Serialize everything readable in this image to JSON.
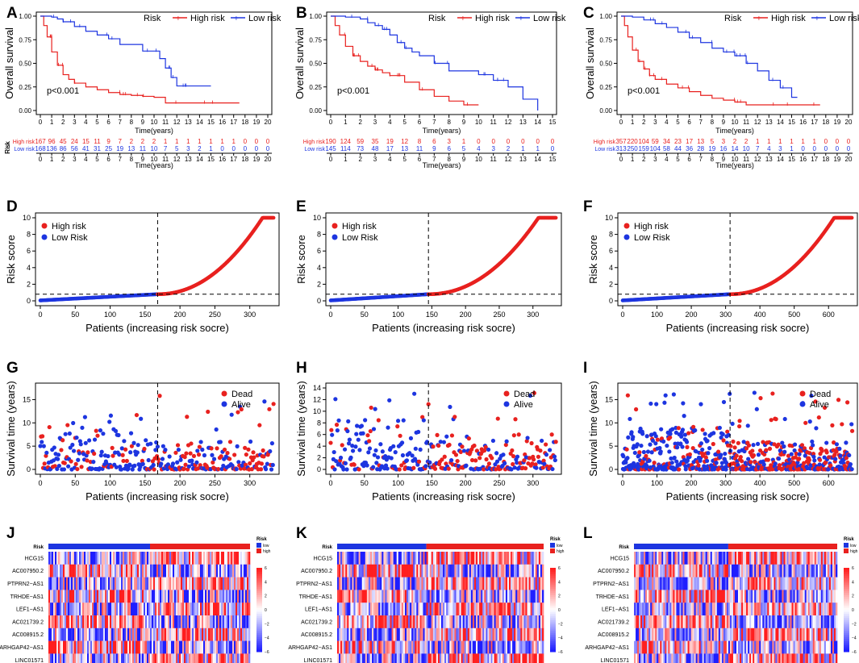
{
  "colors": {
    "high": "#e8211f",
    "low": "#1d35e0",
    "dead": "#e8211f",
    "alive": "#1d35e0",
    "axis": "#000000"
  },
  "panel_labels": [
    "A",
    "B",
    "C",
    "D",
    "E",
    "F",
    "G",
    "H",
    "I",
    "J",
    "K",
    "L"
  ],
  "km": {
    "ylabel": "Overall survival",
    "xlabel": "Time(years)",
    "legend_title": "Risk",
    "legend_high": "High risk",
    "legend_low": "Low risk",
    "y_ticks": [
      "0.00",
      "0.25",
      "0.50",
      "0.75",
      "1.00"
    ]
  },
  "risk_table": {
    "side_label": "Risk",
    "row_high": "High risk",
    "row_low": "Low risk",
    "xlabel": "Time(years)"
  },
  "score": {
    "ylabel": "Risk score",
    "xlabel": "Patients (increasing risk socre)",
    "legend_high": "High risk",
    "legend_low": "Low Risk"
  },
  "status": {
    "ylabel": "Survival time (years)",
    "xlabel": "Patients (increasing risk socre)",
    "legend_dead": "Dead",
    "legend_alive": "Alive"
  },
  "heatmap": {
    "genes": [
      "HCG15",
      "AC007950.2",
      "PTPRN2−AS1",
      "TRHDE−AS1",
      "LEF1−AS1",
      "AC021739.2",
      "AC008915.2",
      "ARHGAP42−AS1",
      "LINC01571"
    ],
    "risk_row": "Risk",
    "legend_title": "Risk",
    "legend_low": "low",
    "legend_high": "high",
    "scale_ticks": [
      "6",
      "4",
      "2",
      "0",
      "−2",
      "−4",
      "−6"
    ]
  },
  "chart_data": [
    {
      "panel": "A",
      "type": "line",
      "title": "",
      "xlabel": "Time(years)",
      "ylabel": "Overall survival",
      "xlim": [
        0,
        20
      ],
      "ylim": [
        0,
        1
      ],
      "p_value": "p<0.001",
      "x_ticks": [
        "0",
        "1",
        "2",
        "3",
        "4",
        "5",
        "6",
        "7",
        "8",
        "9",
        "10",
        "11",
        "12",
        "13",
        "14",
        "15",
        "16",
        "17",
        "18",
        "19",
        "20"
      ],
      "series": [
        {
          "name": "High risk",
          "x": [
            0,
            0.3,
            0.6,
            1,
            1.5,
            2,
            2.5,
            3,
            4,
            5,
            6,
            7,
            8,
            9,
            10,
            11,
            12,
            15,
            17.5
          ],
          "values": [
            1,
            0.9,
            0.78,
            0.62,
            0.48,
            0.38,
            0.33,
            0.29,
            0.25,
            0.22,
            0.19,
            0.17,
            0.16,
            0.15,
            0.14,
            0.08,
            0.08,
            0.08,
            0.08
          ]
        },
        {
          "name": "Low risk",
          "x": [
            0,
            1,
            1.5,
            2,
            3,
            4,
            5,
            6,
            7,
            8,
            9,
            10,
            10.5,
            11,
            11.5,
            12,
            13,
            14,
            15
          ],
          "values": [
            1,
            0.99,
            0.97,
            0.94,
            0.89,
            0.84,
            0.8,
            0.76,
            0.7,
            0.7,
            0.63,
            0.63,
            0.55,
            0.45,
            0.35,
            0.26,
            0.26,
            0.26,
            0.26
          ]
        }
      ]
    },
    {
      "panel": "B",
      "type": "line",
      "title": "",
      "xlabel": "Time(years)",
      "ylabel": "Overall survival",
      "xlim": [
        0,
        15
      ],
      "ylim": [
        0,
        1
      ],
      "p_value": "p<0.001",
      "x_ticks": [
        "0",
        "1",
        "2",
        "3",
        "4",
        "5",
        "6",
        "7",
        "8",
        "9",
        "10",
        "11",
        "12",
        "13",
        "14",
        "15"
      ],
      "series": [
        {
          "name": "High risk",
          "x": [
            0,
            0.3,
            0.6,
            1,
            1.5,
            2,
            2.5,
            3,
            3.5,
            4,
            5,
            6,
            7,
            8,
            9,
            10
          ],
          "values": [
            1,
            0.9,
            0.8,
            0.68,
            0.58,
            0.52,
            0.47,
            0.43,
            0.4,
            0.37,
            0.3,
            0.22,
            0.15,
            0.1,
            0.06,
            0.06
          ]
        },
        {
          "name": "Low risk",
          "x": [
            0,
            1,
            2,
            2.5,
            3,
            3.5,
            4,
            4.5,
            5,
            5.5,
            6,
            7,
            8,
            9,
            10,
            11,
            12,
            13,
            14
          ],
          "values": [
            1,
            0.99,
            0.97,
            0.93,
            0.9,
            0.86,
            0.8,
            0.72,
            0.66,
            0.62,
            0.58,
            0.5,
            0.42,
            0.42,
            0.38,
            0.32,
            0.25,
            0.12,
            0.0
          ]
        }
      ]
    },
    {
      "panel": "C",
      "type": "line",
      "title": "",
      "xlabel": "Time(years)",
      "ylabel": "Overall survival",
      "xlim": [
        0,
        20
      ],
      "ylim": [
        0,
        1
      ],
      "p_value": "p<0.001",
      "x_ticks": [
        "0",
        "1",
        "2",
        "3",
        "4",
        "5",
        "6",
        "7",
        "8",
        "9",
        "10",
        "11",
        "12",
        "13",
        "14",
        "15",
        "16",
        "17",
        "18",
        "19",
        "20"
      ],
      "series": [
        {
          "name": "High risk",
          "x": [
            0,
            0.3,
            0.6,
            1,
            1.5,
            2,
            2.5,
            3,
            4,
            5,
            6,
            7,
            8,
            9,
            10,
            11,
            12,
            15,
            17.5
          ],
          "values": [
            1,
            0.9,
            0.78,
            0.64,
            0.52,
            0.44,
            0.37,
            0.33,
            0.28,
            0.24,
            0.2,
            0.16,
            0.13,
            0.11,
            0.09,
            0.06,
            0.06,
            0.06,
            0.06
          ]
        },
        {
          "name": "Low risk",
          "x": [
            0,
            1,
            2,
            3,
            4,
            5,
            6,
            7,
            8,
            9,
            10,
            11,
            12,
            13,
            14,
            15,
            15.5
          ],
          "values": [
            1,
            0.99,
            0.96,
            0.92,
            0.88,
            0.83,
            0.77,
            0.72,
            0.66,
            0.62,
            0.58,
            0.5,
            0.42,
            0.32,
            0.24,
            0.14,
            0.14
          ]
        }
      ]
    },
    {
      "panel": "A-table",
      "type": "table",
      "columns": [
        "0",
        "1",
        "2",
        "3",
        "4",
        "5",
        "6",
        "7",
        "8",
        "9",
        "10",
        "11",
        "12",
        "13",
        "14",
        "15",
        "16",
        "17",
        "18",
        "19",
        "20"
      ],
      "rows": [
        {
          "name": "High risk",
          "values": [
            "167",
            "96",
            "45",
            "24",
            "15",
            "11",
            "9",
            "7",
            "2",
            "2",
            "2",
            "1",
            "1",
            "1",
            "1",
            "1",
            "1",
            "1",
            "0",
            "0",
            "0"
          ]
        },
        {
          "name": "Low risk",
          "values": [
            "168",
            "136",
            "86",
            "56",
            "41",
            "31",
            "25",
            "19",
            "13",
            "11",
            "10",
            "7",
            "5",
            "3",
            "2",
            "1",
            "0",
            "0",
            "0",
            "0",
            "0"
          ]
        }
      ]
    },
    {
      "panel": "B-table",
      "type": "table",
      "columns": [
        "0",
        "1",
        "2",
        "3",
        "4",
        "5",
        "6",
        "7",
        "8",
        "9",
        "10",
        "11",
        "12",
        "13",
        "14",
        "15"
      ],
      "rows": [
        {
          "name": "High risk",
          "values": [
            "190",
            "124",
            "59",
            "35",
            "19",
            "12",
            "8",
            "6",
            "3",
            "1",
            "0",
            "0",
            "0",
            "0",
            "0",
            "0"
          ]
        },
        {
          "name": "Low risk",
          "values": [
            "145",
            "114",
            "73",
            "48",
            "17",
            "13",
            "11",
            "9",
            "6",
            "5",
            "4",
            "3",
            "2",
            "1",
            "1",
            "0"
          ]
        }
      ]
    },
    {
      "panel": "C-table",
      "type": "table",
      "columns": [
        "0",
        "1",
        "2",
        "3",
        "4",
        "5",
        "6",
        "7",
        "8",
        "9",
        "10",
        "11",
        "12",
        "13",
        "14",
        "15",
        "16",
        "17",
        "18",
        "19",
        "20"
      ],
      "rows": [
        {
          "name": "High risk",
          "values": [
            "357",
            "220",
            "104",
            "59",
            "34",
            "23",
            "17",
            "13",
            "5",
            "3",
            "2",
            "2",
            "1",
            "1",
            "1",
            "1",
            "1",
            "1",
            "0",
            "0",
            "0"
          ]
        },
        {
          "name": "Low risk",
          "values": [
            "313",
            "250",
            "159",
            "104",
            "58",
            "44",
            "36",
            "28",
            "19",
            "16",
            "14",
            "10",
            "7",
            "4",
            "3",
            "1",
            "0",
            "0",
            "0",
            "0",
            "0"
          ]
        }
      ]
    },
    {
      "panel": "D",
      "type": "scatter",
      "xlabel": "Patients (increasing risk socre)",
      "ylabel": "Risk score",
      "n": 335,
      "cutoff_index": 168,
      "cutoff_score": 0.8,
      "xlim": [
        0,
        335
      ],
      "ylim": [
        0,
        10
      ],
      "x_ticks": [
        "0",
        "50",
        "100",
        "150",
        "200",
        "250",
        "300"
      ],
      "y_ticks": [
        "0",
        "2",
        "4",
        "6",
        "8",
        "10"
      ]
    },
    {
      "panel": "E",
      "type": "scatter",
      "xlabel": "Patients (increasing risk socre)",
      "ylabel": "Risk score",
      "n": 335,
      "cutoff_index": 145,
      "cutoff_score": 0.8,
      "xlim": [
        0,
        335
      ],
      "ylim": [
        0,
        10
      ],
      "x_ticks": [
        "0",
        "50",
        "100",
        "150",
        "200",
        "250",
        "300"
      ],
      "y_ticks": [
        "0",
        "2",
        "4",
        "6",
        "8",
        "10"
      ]
    },
    {
      "panel": "F",
      "type": "scatter",
      "xlabel": "Patients (increasing risk socre)",
      "ylabel": "Risk score",
      "n": 670,
      "cutoff_index": 313,
      "cutoff_score": 0.8,
      "xlim": [
        0,
        670
      ],
      "ylim": [
        0,
        10
      ],
      "x_ticks": [
        "0",
        "100",
        "200",
        "300",
        "400",
        "500",
        "600"
      ],
      "y_ticks": [
        "0",
        "2",
        "4",
        "6",
        "8",
        "10"
      ]
    },
    {
      "panel": "G",
      "type": "scatter",
      "xlabel": "Patients (increasing risk socre)",
      "ylabel": "Survival time (years)",
      "n": 335,
      "cutoff_index": 168,
      "xlim": [
        0,
        335
      ],
      "ylim": [
        0,
        17.5
      ],
      "x_ticks": [
        "0",
        "50",
        "100",
        "150",
        "200",
        "250",
        "300"
      ],
      "y_ticks": [
        "0",
        "5",
        "10",
        "15"
      ]
    },
    {
      "panel": "H",
      "type": "scatter",
      "xlabel": "Patients (increasing risk socre)",
      "ylabel": "Survival time (years)",
      "n": 335,
      "cutoff_index": 145,
      "xlim": [
        0,
        335
      ],
      "ylim": [
        0,
        14
      ],
      "x_ticks": [
        "0",
        "50",
        "100",
        "150",
        "200",
        "250",
        "300"
      ],
      "y_ticks": [
        "0",
        "2",
        "4",
        "6",
        "8",
        "10",
        "12",
        "14"
      ]
    },
    {
      "panel": "I",
      "type": "scatter",
      "xlabel": "Patients (increasing risk socre)",
      "ylabel": "Survival time (years)",
      "n": 670,
      "cutoff_index": 313,
      "xlim": [
        0,
        670
      ],
      "ylim": [
        0,
        17.5
      ],
      "x_ticks": [
        "0",
        "100",
        "200",
        "300",
        "400",
        "500",
        "600"
      ],
      "y_ticks": [
        "0",
        "5",
        "10",
        "15"
      ]
    },
    {
      "panel": "J",
      "type": "heatmap",
      "rows": [
        "HCG15",
        "AC007950.2",
        "PTPRN2−AS1",
        "TRHDE−AS1",
        "LEF1−AS1",
        "AC021739.2",
        "AC008915.2",
        "ARHGAP42−AS1",
        "LINC01571"
      ],
      "n_low": 168,
      "n_high": 167,
      "scale": [
        -6,
        6
      ]
    },
    {
      "panel": "K",
      "type": "heatmap",
      "rows": [
        "HCG15",
        "AC007950.2",
        "PTPRN2−AS1",
        "TRHDE−AS1",
        "LEF1−AS1",
        "AC021739.2",
        "AC008915.2",
        "ARHGAP42−AS1",
        "LINC01571"
      ],
      "n_low": 145,
      "n_high": 190,
      "scale": [
        -6,
        6
      ]
    },
    {
      "panel": "L",
      "type": "heatmap",
      "rows": [
        "HCG15",
        "AC007950.2",
        "PTPRN2−AS1",
        "TRHDE−AS1",
        "LEF1−AS1",
        "AC021739.2",
        "AC008915.2",
        "ARHGAP42−AS1",
        "LINC01571"
      ],
      "n_low": 313,
      "n_high": 357,
      "scale": [
        -6,
        6
      ]
    }
  ]
}
